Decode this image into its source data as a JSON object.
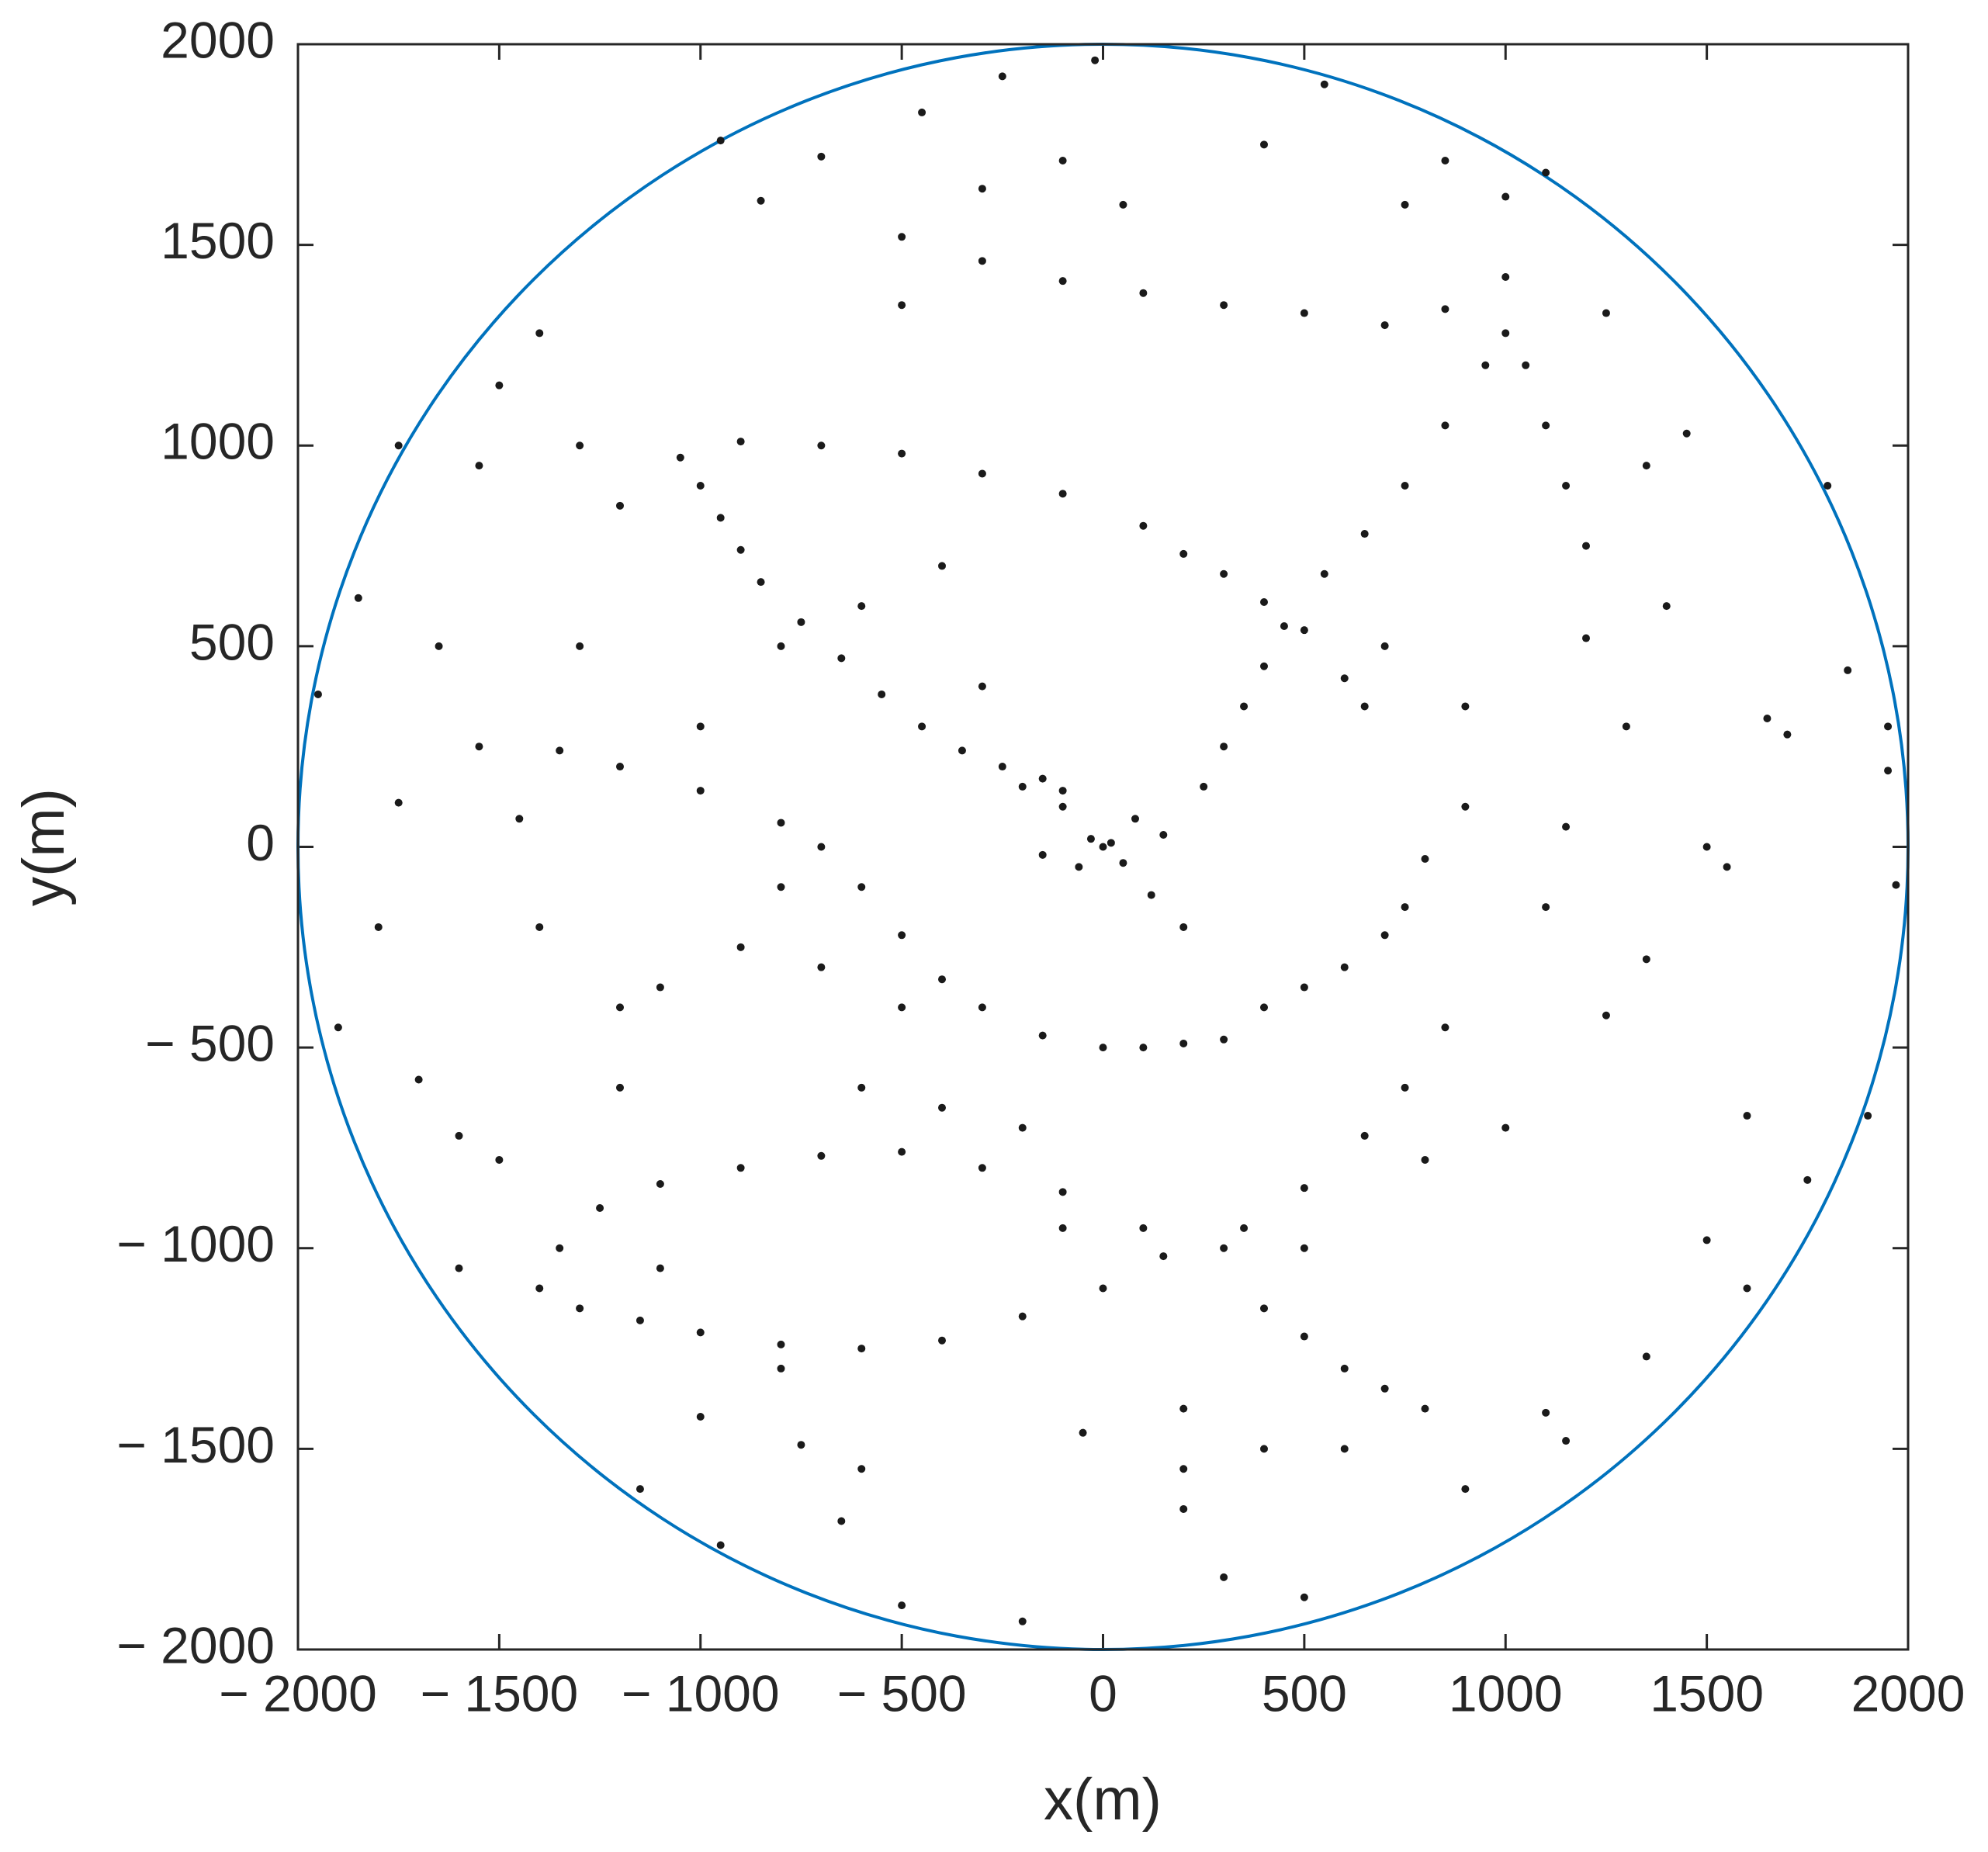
{
  "chart_data": {
    "type": "scatter",
    "xlabel": "x(m)",
    "ylabel": "y(m)",
    "xlim": [
      -2000,
      2000
    ],
    "ylim": [
      -2000,
      2000
    ],
    "xticks": [
      {
        "value": -2000,
        "label": "− 2000"
      },
      {
        "value": -1500,
        "label": "− 1500"
      },
      {
        "value": -1000,
        "label": "− 1000"
      },
      {
        "value": -500,
        "label": "− 500"
      },
      0,
      500,
      1000,
      1500,
      2000
    ],
    "yticks": [
      {
        "value": -2000,
        "label": "− 2000"
      },
      {
        "value": -1500,
        "label": "− 1500"
      },
      {
        "value": -1000,
        "label": "− 1000"
      },
      {
        "value": -500,
        "label": "− 500"
      },
      0,
      500,
      1000,
      1500,
      2000
    ],
    "circle": {
      "cx": 0,
      "cy": 0,
      "r": 2000,
      "color": "#0072bd"
    },
    "series": [
      {
        "color": "#1a1a1a",
        "x": [
          -1050,
          -900,
          -700,
          -500,
          -300,
          -100,
          100,
          200,
          300,
          400,
          500,
          600,
          650,
          -1000,
          -950,
          -900,
          -850,
          -750,
          -650,
          -550,
          -450,
          -350,
          -250,
          -150,
          -100,
          250,
          300,
          350,
          400,
          450,
          550,
          650,
          750,
          850,
          950,
          1000,
          1050,
          1100,
          1150,
          1200,
          -500,
          -300,
          -100,
          100,
          300,
          500,
          700,
          850,
          -1350,
          -1200,
          -1000,
          -800,
          -700,
          -600,
          -500,
          -400,
          -300,
          -150,
          0,
          100,
          200,
          300,
          400,
          500,
          600,
          700,
          750,
          800,
          -1400,
          -1350,
          -1250,
          -1100,
          -900,
          -700,
          -500,
          -300,
          -100,
          100,
          300,
          -1300,
          -1150,
          -1000,
          -800,
          -600,
          -400,
          -200,
          0,
          150,
          350,
          500,
          650,
          750,
          850,
          400,
          500,
          600,
          700,
          800,
          0,
          20,
          -30,
          50,
          -60,
          80,
          -100,
          120,
          150,
          -150,
          200,
          -200,
          -1950,
          -1850,
          -1900,
          -1800,
          -1750,
          -1750,
          -1700,
          -1600,
          -1550,
          -1500,
          -1550,
          -1500,
          -1400,
          -1300,
          -1300,
          -1200,
          -1200,
          -1150,
          -950,
          -950,
          -850,
          -750,
          -700,
          -650,
          -500,
          -500,
          -450,
          -300,
          -250,
          -200,
          -100,
          -20,
          50,
          200,
          300,
          400,
          500,
          550,
          600,
          750,
          850,
          900,
          1000,
          1100,
          1150,
          1250,
          1350,
          1350,
          1450,
          1500,
          1600,
          1650,
          1700,
          1750,
          1800,
          1850,
          1900,
          1950,
          1970,
          1950,
          1350,
          1200,
          1100,
          1000,
          900,
          800,
          700,
          -800,
          -600,
          -400,
          -300,
          -500,
          -700,
          -900,
          -1100,
          -1000,
          -800,
          -600,
          -400,
          -200,
          -100,
          200,
          400,
          500,
          -1000,
          -800,
          -1200,
          -1400,
          -1450,
          1400,
          1500,
          1550,
          1250,
          1150,
          -50,
          1000,
          1100,
          900,
          -1650,
          -1600,
          -1100,
          -600,
          200,
          1300,
          1600
        ],
        "values": [
          970,
          1010,
          1000,
          980,
          930,
          880,
          800,
          730,
          680,
          610,
          540,
          420,
          350,
          900,
          820,
          740,
          660,
          560,
          470,
          380,
          300,
          240,
          200,
          170,
          140,
          150,
          250,
          350,
          450,
          550,
          680,
          780,
          900,
          1050,
          1200,
          1280,
          1200,
          1050,
          900,
          750,
          1520,
          1460,
          1410,
          1380,
          1350,
          1330,
          1300,
          1340,
          240,
          200,
          140,
          60,
          0,
          -100,
          -220,
          -330,
          -400,
          -470,
          -500,
          -500,
          -490,
          -480,
          -400,
          -350,
          -300,
          -220,
          -150,
          -30,
          -1100,
          -1000,
          -900,
          -840,
          -800,
          -770,
          -760,
          -800,
          -860,
          -950,
          -1000,
          -1150,
          -1180,
          -1210,
          -1240,
          -1250,
          -1230,
          -1170,
          -1100,
          -1020,
          -950,
          -850,
          -720,
          -600,
          -450,
          -1150,
          -1220,
          -1300,
          -1350,
          -1400,
          0,
          10,
          20,
          -40,
          -50,
          70,
          100,
          -120,
          30,
          -20,
          -200,
          150,
          380,
          620,
          -450,
          -200,
          1000,
          110,
          -580,
          -720,
          950,
          1150,
          250,
          -780,
          1280,
          1000,
          500,
          850,
          -400,
          -1600,
          1760,
          -1740,
          1610,
          -1490,
          1720,
          -1680,
          1350,
          -1890,
          1830,
          1640,
          1920,
          -1930,
          1710,
          1960,
          1600,
          -1650,
          -1820,
          1750,
          -1870,
          1900,
          -1500,
          1600,
          1710,
          -1600,
          1620,
          -1410,
          -1480,
          1330,
          -280,
          -1270,
          1030,
          -980,
          -670,
          320,
          280,
          -830,
          900,
          440,
          -670,
          190,
          -95,
          300,
          950,
          520,
          -150,
          -700,
          100,
          -780,
          500,
          500,
          600,
          700,
          400,
          -400,
          -300,
          -250,
          -350,
          300,
          -100,
          -600,
          -650,
          -700,
          -950,
          -1400,
          -1500,
          -1000,
          -1420,
          -1300,
          -600,
          -200,
          70,
          600,
          0,
          -50,
          -420,
          50,
          -1460,
          1420,
          1680,
          350,
          500,
          -1050,
          -1050,
          -1550,
          -1550,
          300,
          -1100
        ]
      }
    ]
  }
}
